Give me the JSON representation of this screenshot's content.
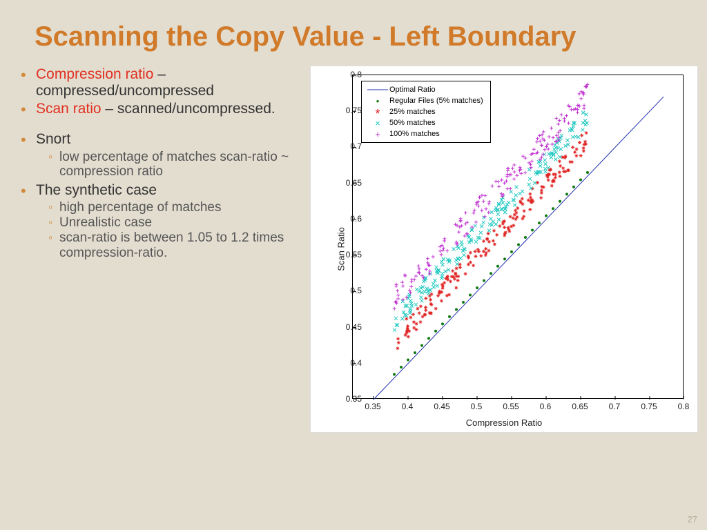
{
  "slide": {
    "title": "Scanning the Copy Value - Left Boundary",
    "page_number": "27",
    "background": "#e3ddd0",
    "title_color": "#d07a2a"
  },
  "bullets": {
    "b1_term": "Compression ratio",
    "b1_rest": " – compressed/uncompressed",
    "b2_term": "Scan ratio",
    "b2_rest": " – scanned/uncompressed.",
    "b3": "Snort",
    "b3_s1": "low percentage of matches scan-ratio ~ compression ratio",
    "b4": "The synthetic case",
    "b4_s1": "high percentage of matches",
    "b4_s2": "Unrealistic case",
    "b4_s3": "scan-ratio is between 1.05 to 1.2 times compression-ratio.",
    "term_color": "#e03020",
    "bullet_color": "#d28a3a"
  },
  "chart": {
    "type": "scatter",
    "background_color": "#ffffff",
    "xlabel": "Compression Ratio",
    "ylabel": "Scan Ratio",
    "label_fontsize": 13,
    "tick_fontsize": 12,
    "xlim": [
      0.32,
      0.8
    ],
    "ylim": [
      0.35,
      0.8
    ],
    "xticks": [
      0.35,
      0.4,
      0.45,
      0.5,
      0.55,
      0.6,
      0.65,
      0.7,
      0.75,
      0.8
    ],
    "yticks": [
      0.35,
      0.4,
      0.45,
      0.5,
      0.55,
      0.6,
      0.65,
      0.7,
      0.75,
      0.8
    ],
    "legend": {
      "position": "upper-left",
      "border_color": "#000000",
      "items": [
        {
          "label": "Optimal Ratio",
          "type": "line",
          "color": "#2030b0"
        },
        {
          "label": "Regular Files (5% matches)",
          "type": "dot",
          "color": "#0e7a0e"
        },
        {
          "label": "25% matches",
          "type": "star",
          "color": "#e02020"
        },
        {
          "label": "50% matches",
          "type": "cross",
          "color": "#20c8c0"
        },
        {
          "label": "100% matches",
          "type": "plus",
          "color": "#c030d0"
        }
      ]
    },
    "series": {
      "optimal_line": {
        "color": "#2030b0",
        "width": 1,
        "x": [
          0.35,
          0.77
        ],
        "y": [
          0.35,
          0.77
        ]
      },
      "regular_5pct": {
        "color": "#0e7a0e",
        "marker": "dot",
        "size": 2,
        "x": [
          0.38,
          0.39,
          0.4,
          0.41,
          0.42,
          0.43,
          0.44,
          0.45,
          0.46,
          0.47,
          0.48,
          0.49,
          0.5,
          0.51,
          0.52,
          0.53,
          0.54,
          0.55,
          0.56,
          0.57,
          0.58,
          0.59,
          0.6,
          0.61,
          0.62,
          0.63,
          0.64,
          0.65,
          0.66
        ],
        "y": [
          0.385,
          0.395,
          0.405,
          0.415,
          0.425,
          0.435,
          0.445,
          0.455,
          0.465,
          0.475,
          0.485,
          0.495,
          0.505,
          0.515,
          0.525,
          0.535,
          0.545,
          0.555,
          0.565,
          0.575,
          0.585,
          0.595,
          0.605,
          0.615,
          0.625,
          0.635,
          0.645,
          0.655,
          0.665
        ]
      },
      "pct25": {
        "color": "#e02020",
        "marker": "star",
        "size": 5,
        "x_range": [
          0.38,
          0.66
        ],
        "y_offset": 0.05,
        "jitter": 0.015,
        "n": 180
      },
      "pct50": {
        "color": "#20c8c0",
        "marker": "cross",
        "size": 5,
        "x_range": [
          0.38,
          0.66
        ],
        "y_offset": 0.08,
        "jitter": 0.015,
        "n": 180
      },
      "pct100": {
        "color": "#c030d0",
        "marker": "plus",
        "size": 5,
        "x_range": [
          0.38,
          0.66
        ],
        "y_offset": 0.11,
        "jitter": 0.018,
        "n": 180
      }
    }
  }
}
